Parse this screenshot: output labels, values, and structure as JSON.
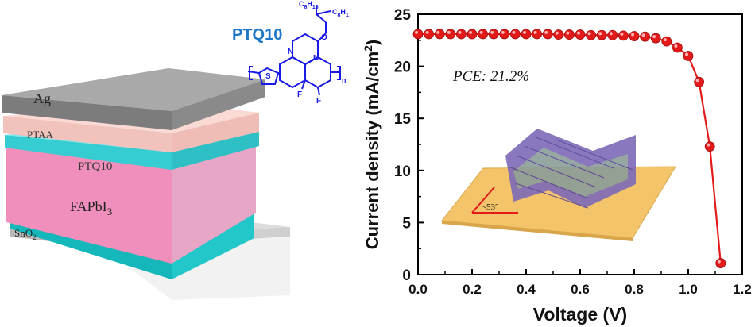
{
  "device": {
    "layers": {
      "ag": "Ag",
      "ptaa": "PTAA",
      "ptq10": "PTQ10",
      "perovskite_main": "FAPbI",
      "perovskite_sub": "3",
      "sno2_main": "SnO",
      "sno2_sub": "2"
    },
    "molecule": {
      "name": "PTQ10",
      "side_chain_top_main": "C",
      "side_chain_top_sub": "6",
      "side_chain_top_h": "H",
      "side_chain_top_hsub": "13",
      "side_chain_right_main": "C",
      "side_chain_right_sub": "8",
      "side_chain_right_h": "H",
      "side_chain_right_hsub": "17",
      "atom_o": "O",
      "atom_n1": "N",
      "atom_n2": "N",
      "atom_s": "S",
      "atom_f1": "F",
      "atom_f2": "F",
      "repeat_n": "n",
      "color": "#1a1ae6",
      "name_color": "#1f77c8"
    },
    "colors": {
      "ag": "#8c8c8c",
      "ptaa": "#f5c6c0",
      "ptq10": "#38d0d6",
      "perovskite": "#ee8fb8",
      "sno2": "#1ec5c8",
      "substrate": "#c8c8c8"
    }
  },
  "chart_data": {
    "type": "line",
    "xlabel": "Voltage (V)",
    "ylabel_main": "Current density (mA/cm",
    "ylabel_sup": "2",
    "ylabel_end": ")",
    "xlim": [
      0.0,
      1.2
    ],
    "ylim": [
      0,
      25
    ],
    "xticks": [
      "0.0",
      "0.2",
      "0.4",
      "0.6",
      "0.8",
      "1.0",
      "1.2"
    ],
    "yticks": [
      "0",
      "5",
      "10",
      "15",
      "20",
      "25"
    ],
    "annotation": "PCE: 21.2%",
    "inset_angle_label": "~53°",
    "series": [
      {
        "color": "#e31a1a",
        "x": [
          0.0,
          0.04,
          0.08,
          0.12,
          0.16,
          0.2,
          0.24,
          0.28,
          0.32,
          0.36,
          0.4,
          0.44,
          0.48,
          0.52,
          0.56,
          0.6,
          0.64,
          0.68,
          0.72,
          0.76,
          0.8,
          0.84,
          0.88,
          0.92,
          0.96,
          1.0,
          1.04,
          1.08,
          1.12
        ],
        "y": [
          23.1,
          23.1,
          23.1,
          23.1,
          23.1,
          23.1,
          23.1,
          23.1,
          23.1,
          23.1,
          23.1,
          23.1,
          23.1,
          23.05,
          23.05,
          23.05,
          23.0,
          23.0,
          23.0,
          22.95,
          22.9,
          22.85,
          22.7,
          22.4,
          21.8,
          21.0,
          18.5,
          12.3,
          1.1
        ]
      }
    ]
  }
}
